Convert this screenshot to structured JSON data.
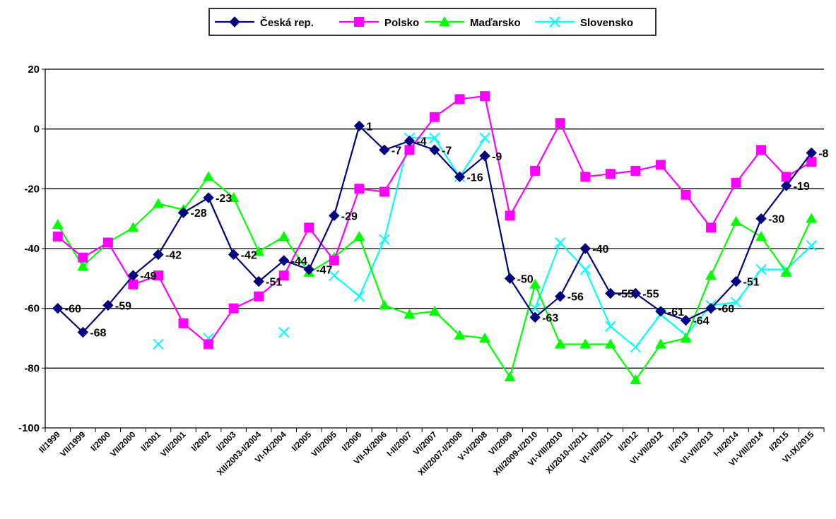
{
  "chart_data": {
    "type": "line",
    "ylim": [
      -100,
      20
    ],
    "yticks": [
      20,
      0,
      -20,
      -40,
      -60,
      -80,
      -100
    ],
    "grid": true,
    "legend_position": "top-center",
    "categories": [
      "II/1999",
      "VII/1999",
      "I/2000",
      "VII/2000",
      "I/2001",
      "VII/2001",
      "I/2002",
      "I/2003",
      "XII/2003-I/2004",
      "VI-IX/2004",
      "I/2005",
      "VII/2005",
      "I/2006",
      "VII-IX/2006",
      "I-II/2007",
      "VI/2007",
      "XII/2007-I/2008",
      "V-VI/2008",
      "VI/2009",
      "XII/2009-I/2010",
      "VI-VIII/2010",
      "XI/2010-I/2011",
      "VI-VII/2011",
      "I/2012",
      "VI-VII/2012",
      "I/2013",
      "VI-VII/2013",
      "I-II/2014",
      "VI-VIII/2014",
      "I/2015",
      "VI-IX/2015"
    ],
    "series": [
      {
        "name": "Česká rep.",
        "color": "#000080",
        "marker": "diamond",
        "labeled": true,
        "values": [
          -60,
          -68,
          -59,
          -49,
          -42,
          -28,
          -23,
          -42,
          -51,
          -44,
          -47,
          -29,
          1,
          -7,
          -4,
          -7,
          -16,
          -9,
          -50,
          -63,
          -56,
          -40,
          -55,
          -55,
          -61,
          -64,
          -60,
          -51,
          -30,
          -19,
          -8
        ]
      },
      {
        "name": "Polsko",
        "color": "#ff00ff",
        "marker": "square",
        "labeled": false,
        "values": [
          -36,
          -43,
          -38,
          -52,
          -49,
          -65,
          -72,
          -60,
          -56,
          -49,
          -33,
          -44,
          -20,
          -21,
          -7,
          4,
          10,
          11,
          -29,
          -14,
          2,
          -16,
          -15,
          -14,
          -12,
          -22,
          -33,
          -18,
          -7,
          -16,
          -11
        ]
      },
      {
        "name": "Maďarsko",
        "color": "#00ff00",
        "marker": "triangle",
        "labeled": false,
        "values": [
          -32,
          -46,
          -38,
          -33,
          -25,
          -27,
          -16,
          -23,
          -41,
          -36,
          -48,
          -43,
          -36,
          -59,
          -62,
          -61,
          -69,
          -70,
          -83,
          -52,
          -72,
          -72,
          -72,
          -84,
          -72,
          -70,
          -49,
          -31,
          -36,
          -48,
          -30
        ]
      },
      {
        "name": "Slovensko",
        "color": "#00ffff",
        "marker": "x",
        "labeled": false,
        "values": [
          null,
          null,
          null,
          null,
          -72,
          null,
          -70,
          null,
          null,
          -68,
          null,
          -49,
          -56,
          -37,
          -3,
          -3,
          -16,
          -3,
          null,
          -60,
          -38,
          -47,
          -66,
          -73,
          -62,
          -69,
          -59,
          -58,
          -47,
          -47,
          -39
        ]
      }
    ],
    "data_labels": [
      "-60",
      "-68",
      "-59",
      "-49",
      "-42",
      "-28",
      "-23",
      "-42",
      "-51",
      "-44",
      "-47",
      "-29",
      "1",
      "-7",
      "-4",
      "-7",
      "-16",
      "-9",
      "-50",
      "-63",
      "-56",
      "-40",
      "-55",
      "-55",
      "-61",
      "-64",
      "-60",
      "-51",
      "-30",
      "-19",
      "-8"
    ]
  }
}
